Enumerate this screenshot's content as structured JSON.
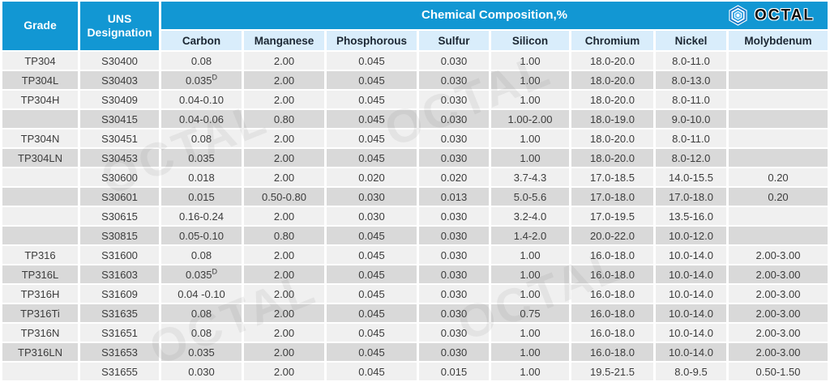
{
  "logo": {
    "text": "OCTAL",
    "icon": "octal-hexagon-icon"
  },
  "watermark_text": "OCTAL",
  "colors": {
    "header_blue": "#1297d3",
    "subheader_light_blue": "#d9edfb",
    "row_light": "#f0f0f0",
    "row_dark": "#d9d9d9",
    "header_text": "#ffffff",
    "body_text": "#3c3c3c"
  },
  "header": {
    "grade": "Grade",
    "uns": "UNS Designation",
    "composition": "Chemical Composition,%",
    "elements": [
      "Carbon",
      "Manganese",
      "Phosphorous",
      "Sulfur",
      "Silicon",
      "Chromium",
      "Nickel",
      "Molybdenum"
    ]
  },
  "table": {
    "rows": [
      {
        "grade": "TP304",
        "uns": "S30400",
        "values": [
          "0.08",
          "2.00",
          "0.045",
          "0.030",
          "1.00",
          "18.0-20.0",
          "8.0-11.0",
          ""
        ]
      },
      {
        "grade": "TP304L",
        "uns": "S30403",
        "values": [
          {
            "t": "0.035",
            "sup": "D"
          },
          "2.00",
          "0.045",
          "0.030",
          "1.00",
          "18.0-20.0",
          "8.0-13.0",
          ""
        ]
      },
      {
        "grade": "TP304H",
        "uns": "S30409",
        "values": [
          "0.04-0.10",
          "2.00",
          "0.045",
          "0.030",
          "1.00",
          "18.0-20.0",
          "8.0-11.0",
          ""
        ]
      },
      {
        "grade": "",
        "uns": "S30415",
        "values": [
          "0.04-0.06",
          "0.80",
          "0.045",
          "0.030",
          "1.00-2.00",
          "18.0-19.0",
          "9.0-10.0",
          ""
        ]
      },
      {
        "grade": "TP304N",
        "uns": "S30451",
        "values": [
          "0.08",
          "2.00",
          "0.045",
          "0.030",
          "1.00",
          "18.0-20.0",
          "8.0-11.0",
          ""
        ]
      },
      {
        "grade": "TP304LN",
        "uns": "S30453",
        "values": [
          "0.035",
          "2.00",
          "0.045",
          "0.030",
          "1.00",
          "18.0-20.0",
          "8.0-12.0",
          ""
        ]
      },
      {
        "grade": "",
        "uns": "S30600",
        "values": [
          "0.018",
          "2.00",
          "0.020",
          "0.020",
          "3.7-4.3",
          "17.0-18.5",
          "14.0-15.5",
          "0.20"
        ]
      },
      {
        "grade": "",
        "uns": "S30601",
        "values": [
          "0.015",
          "0.50-0.80",
          "0.030",
          "0.013",
          "5.0-5.6",
          "17.0-18.0",
          "17.0-18.0",
          "0.20"
        ]
      },
      {
        "grade": "",
        "uns": "S30615",
        "values": [
          "0.16-0.24",
          "2.00",
          "0.030",
          "0.030",
          "3.2-4.0",
          "17.0-19.5",
          "13.5-16.0",
          ""
        ]
      },
      {
        "grade": "",
        "uns": "S30815",
        "values": [
          "0.05-0.10",
          "0.80",
          "0.045",
          "0.030",
          "1.4-2.0",
          "20.0-22.0",
          "10.0-12.0",
          ""
        ]
      },
      {
        "grade": "TP316",
        "uns": "S31600",
        "values": [
          "0.08",
          "2.00",
          "0.045",
          "0.030",
          "1.00",
          "16.0-18.0",
          "10.0-14.0",
          "2.00-3.00"
        ]
      },
      {
        "grade": "TP316L",
        "uns": "S31603",
        "values": [
          {
            "t": "0.035",
            "sup": "D"
          },
          "2.00",
          "0.045",
          "0.030",
          "1.00",
          "16.0-18.0",
          "10.0-14.0",
          "2.00-3.00"
        ]
      },
      {
        "grade": "TP316H",
        "uns": "S31609",
        "values": [
          "0.04 -0.10",
          "2.00",
          "0.045",
          "0.030",
          "1.00",
          "16.0-18.0",
          "10.0-14.0",
          "2.00-3.00"
        ]
      },
      {
        "grade": "TP316Ti",
        "uns": "S31635",
        "values": [
          "0.08",
          "2.00",
          "0.045",
          "0.030",
          "0.75",
          "16.0-18.0",
          "10.0-14.0",
          "2.00-3.00"
        ]
      },
      {
        "grade": "TP316N",
        "uns": "S31651",
        "values": [
          "0.08",
          "2.00",
          "0.045",
          "0.030",
          "1.00",
          "16.0-18.0",
          "10.0-14.0",
          "2.00-3.00"
        ]
      },
      {
        "grade": "TP316LN",
        "uns": "S31653",
        "values": [
          "0.035",
          "2.00",
          "0.045",
          "0.030",
          "1.00",
          "16.0-18.0",
          "10.0-14.0",
          "2.00-3.00"
        ]
      },
      {
        "grade": "",
        "uns": "S31655",
        "values": [
          "0.030",
          "2.00",
          "0.045",
          "0.015",
          "1.00",
          "19.5-21.5",
          "8.0-9.5",
          "0.50-1.50"
        ]
      }
    ]
  }
}
